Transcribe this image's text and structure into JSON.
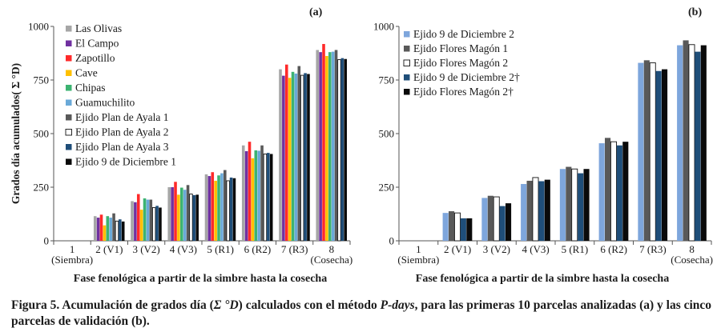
{
  "figure": {
    "caption_label": "Figura 5.",
    "caption_pre": "Acumulación de grados día (",
    "caption_symbol": "Σ °D",
    "caption_mid": ") calculados con  el método ",
    "caption_method": "P-days",
    "caption_post": ", para las primeras 10 parcelas analizadas (a) y las cinco parcelas de validación (b)."
  },
  "chart_data": [
    {
      "type": "bar",
      "panel_label": "(a)",
      "ylabel": "Grados día acumulados( Σ °D)",
      "xlabel": "Fase fenológica a partir de la simbre hasta la cosecha",
      "ylim": [
        0,
        1000
      ],
      "yticks": [
        "0",
        "250",
        "500",
        "750",
        "1000"
      ],
      "categories": [
        "1 (Siembra)",
        "2 (V1)",
        "3 (V2)",
        "4 (V3)",
        "5 (R1)",
        "6 (R2)",
        "7 (R3)",
        "8 (Cosecha)"
      ],
      "category_lines": [
        [
          "1",
          "(Siembra)"
        ],
        [
          "2 (V1)"
        ],
        [
          "3 (V2)"
        ],
        [
          "4 (V3)"
        ],
        [
          "5 (R1)"
        ],
        [
          "6 (R2)"
        ],
        [
          "7 (R3)"
        ],
        [
          "8",
          "(Cosecha)"
        ]
      ],
      "legend_position": "top-left",
      "series": [
        {
          "name": "Las Olivas",
          "color": "#a6a6a6",
          "outline": false,
          "values": [
            0,
            115,
            185,
            250,
            310,
            445,
            800,
            890
          ]
        },
        {
          "name": "El Campo",
          "color": "#7030a0",
          "outline": false,
          "values": [
            0,
            108,
            180,
            250,
            302,
            418,
            770,
            880
          ]
        },
        {
          "name": "Zapotillo",
          "color": "#ff2a2a",
          "outline": false,
          "values": [
            0,
            122,
            218,
            275,
            320,
            462,
            822,
            918
          ]
        },
        {
          "name": "Cave",
          "color": "#ffc000",
          "outline": false,
          "values": [
            0,
            72,
            145,
            215,
            280,
            385,
            760,
            862
          ]
        },
        {
          "name": "Chipas",
          "color": "#3cb371",
          "outline": false,
          "values": [
            0,
            115,
            198,
            248,
            305,
            422,
            788,
            880
          ]
        },
        {
          "name": "Guamuchilito",
          "color": "#6aa9d8",
          "outline": false,
          "values": [
            0,
            108,
            192,
            238,
            315,
            420,
            780,
            882
          ]
        },
        {
          "name": "Ejido Plan de Ayala 1",
          "color": "#595959",
          "outline": false,
          "values": [
            0,
            128,
            192,
            260,
            330,
            445,
            815,
            890
          ]
        },
        {
          "name": "Ejido Plan de Ayala 2",
          "color": "#ffffff",
          "outline": true,
          "values": [
            0,
            92,
            155,
            218,
            280,
            405,
            772,
            845
          ]
        },
        {
          "name": "Ejido Plan de Ayala 3",
          "color": "#1f4e79",
          "outline": false,
          "values": [
            0,
            100,
            163,
            213,
            295,
            410,
            782,
            852
          ]
        },
        {
          "name": "Ejido 9 de Diciembre 1",
          "color": "#0a0a0a",
          "outline": false,
          "values": [
            0,
            90,
            155,
            215,
            292,
            405,
            778,
            848
          ]
        }
      ]
    },
    {
      "type": "bar",
      "panel_label": "(b)",
      "ylabel": "",
      "xlabel": "Fase fenológica a partir de la simbre hasta la cosecha",
      "ylim": [
        0,
        1000
      ],
      "yticks": [
        "0",
        "250",
        "500",
        "750",
        "1000"
      ],
      "categories": [
        "1 (Siembra)",
        "2 (V1)",
        "3 (V2)",
        "4 (V3)",
        "5 (R1)",
        "6 (R2)",
        "7 (R3)",
        "8 (Cosecha)"
      ],
      "category_lines": [
        [
          "1",
          "(Siembra)"
        ],
        [
          "2 (V1)"
        ],
        [
          "3 (V2)"
        ],
        [
          "4 (V3)"
        ],
        [
          "5 (R1)"
        ],
        [
          "6 (R2)"
        ],
        [
          "7 (R3)"
        ],
        [
          "8",
          "(Cosecha)"
        ]
      ],
      "legend_position": "top-left",
      "series": [
        {
          "name": "Ejido 9 de Diciembre 2",
          "color": "#7ea6dc",
          "outline": false,
          "values": [
            0,
            130,
            200,
            265,
            335,
            455,
            830,
            912
          ]
        },
        {
          "name": "Ejido Flores Magón 1",
          "color": "#595959",
          "outline": false,
          "values": [
            0,
            138,
            210,
            280,
            345,
            480,
            842,
            935
          ]
        },
        {
          "name": "Ejido Flores Magón 2",
          "color": "#ffffff",
          "outline": true,
          "values": [
            0,
            130,
            205,
            295,
            335,
            462,
            830,
            915
          ]
        },
        {
          "name": "Ejido 9 de Diciembre 2†",
          "color": "#1f4e79",
          "outline": false,
          "values": [
            0,
            105,
            162,
            278,
            315,
            445,
            792,
            882
          ]
        },
        {
          "name": "Ejido Flores Magón 2†",
          "color": "#0a0a0a",
          "outline": false,
          "values": [
            0,
            105,
            175,
            285,
            335,
            462,
            800,
            912
          ]
        }
      ]
    }
  ]
}
